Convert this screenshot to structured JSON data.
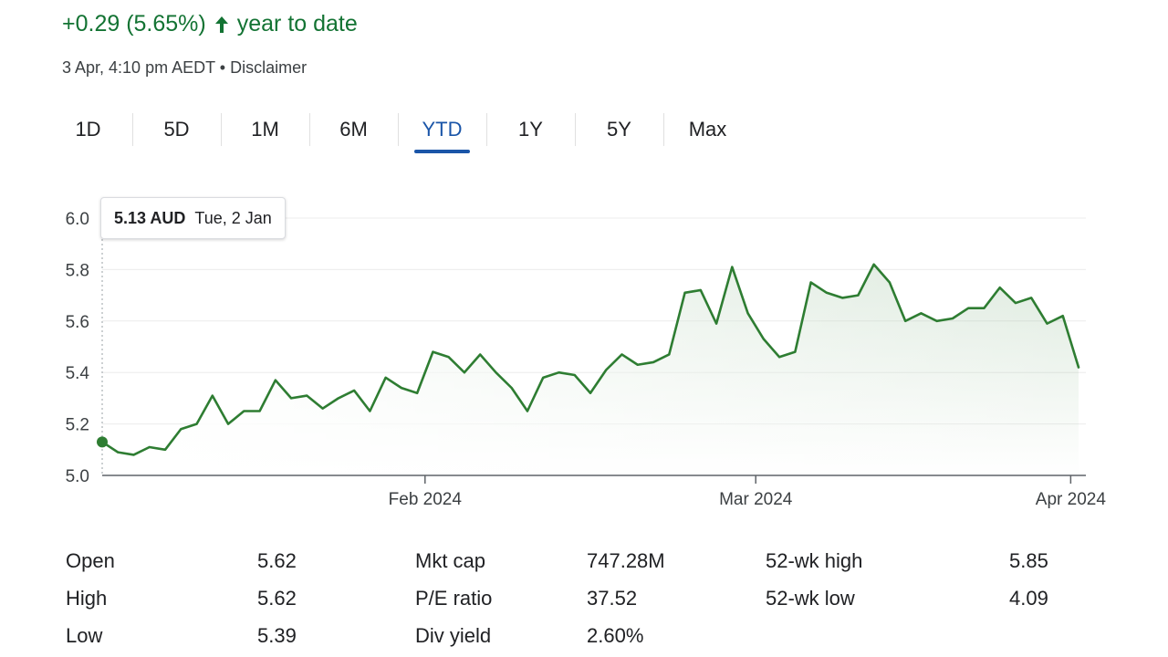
{
  "header": {
    "change_text": "+0.29 (5.65%)",
    "direction_icon": "arrow-up-icon",
    "period_text": "year to date",
    "timestamp": "3 Apr, 4:10 pm AEDT",
    "separator": "•",
    "disclaimer_label": "Disclaimer"
  },
  "colors": {
    "positive": "#137333",
    "active_tab": "#1a55a8",
    "line": "#2e7d32"
  },
  "tabs": [
    {
      "label": "1D"
    },
    {
      "label": "5D"
    },
    {
      "label": "1M"
    },
    {
      "label": "6M"
    },
    {
      "label": "YTD",
      "active": true
    },
    {
      "label": "1Y"
    },
    {
      "label": "5Y"
    },
    {
      "label": "Max"
    }
  ],
  "tooltip": {
    "price": "5.13 AUD",
    "date": "Tue, 2 Jan"
  },
  "chart_data": {
    "type": "area",
    "title": "",
    "xlabel": "",
    "ylabel": "",
    "ylim": [
      5.0,
      6.0
    ],
    "y_ticks": [
      "6.0",
      "5.8",
      "5.6",
      "5.4",
      "5.2",
      "5.0"
    ],
    "x_ticks": [
      "Feb 2024",
      "Mar 2024",
      "Apr 2024"
    ],
    "grid": true,
    "series": [
      {
        "values": [
          5.13,
          5.09,
          5.08,
          5.11,
          5.1,
          5.18,
          5.2,
          5.31,
          5.2,
          5.25,
          5.25,
          5.37,
          5.3,
          5.31,
          5.26,
          5.3,
          5.33,
          5.25,
          5.38,
          5.34,
          5.32,
          5.48,
          5.46,
          5.4,
          5.47,
          5.4,
          5.34,
          5.25,
          5.38,
          5.4,
          5.39,
          5.32,
          5.41,
          5.47,
          5.43,
          5.44,
          5.47,
          5.71,
          5.72,
          5.59,
          5.81,
          5.63,
          5.53,
          5.46,
          5.48,
          5.75,
          5.71,
          5.69,
          5.7,
          5.82,
          5.75,
          5.6,
          5.63,
          5.6,
          5.61,
          5.65,
          5.65,
          5.73,
          5.67,
          5.69,
          5.59,
          5.62,
          5.42
        ]
      }
    ],
    "tick_positions": [
      20.5,
      41.5,
      61.5
    ],
    "highlight_index": 0
  },
  "stats": [
    {
      "label": "Open",
      "value": "5.62"
    },
    {
      "label": "High",
      "value": "5.62"
    },
    {
      "label": "Low",
      "value": "5.39"
    },
    {
      "label": "Mkt cap",
      "value": "747.28M"
    },
    {
      "label": "P/E ratio",
      "value": "37.52"
    },
    {
      "label": "Div yield",
      "value": "2.60%"
    },
    {
      "label": "52-wk high",
      "value": "5.85"
    },
    {
      "label": "52-wk low",
      "value": "4.09"
    }
  ]
}
